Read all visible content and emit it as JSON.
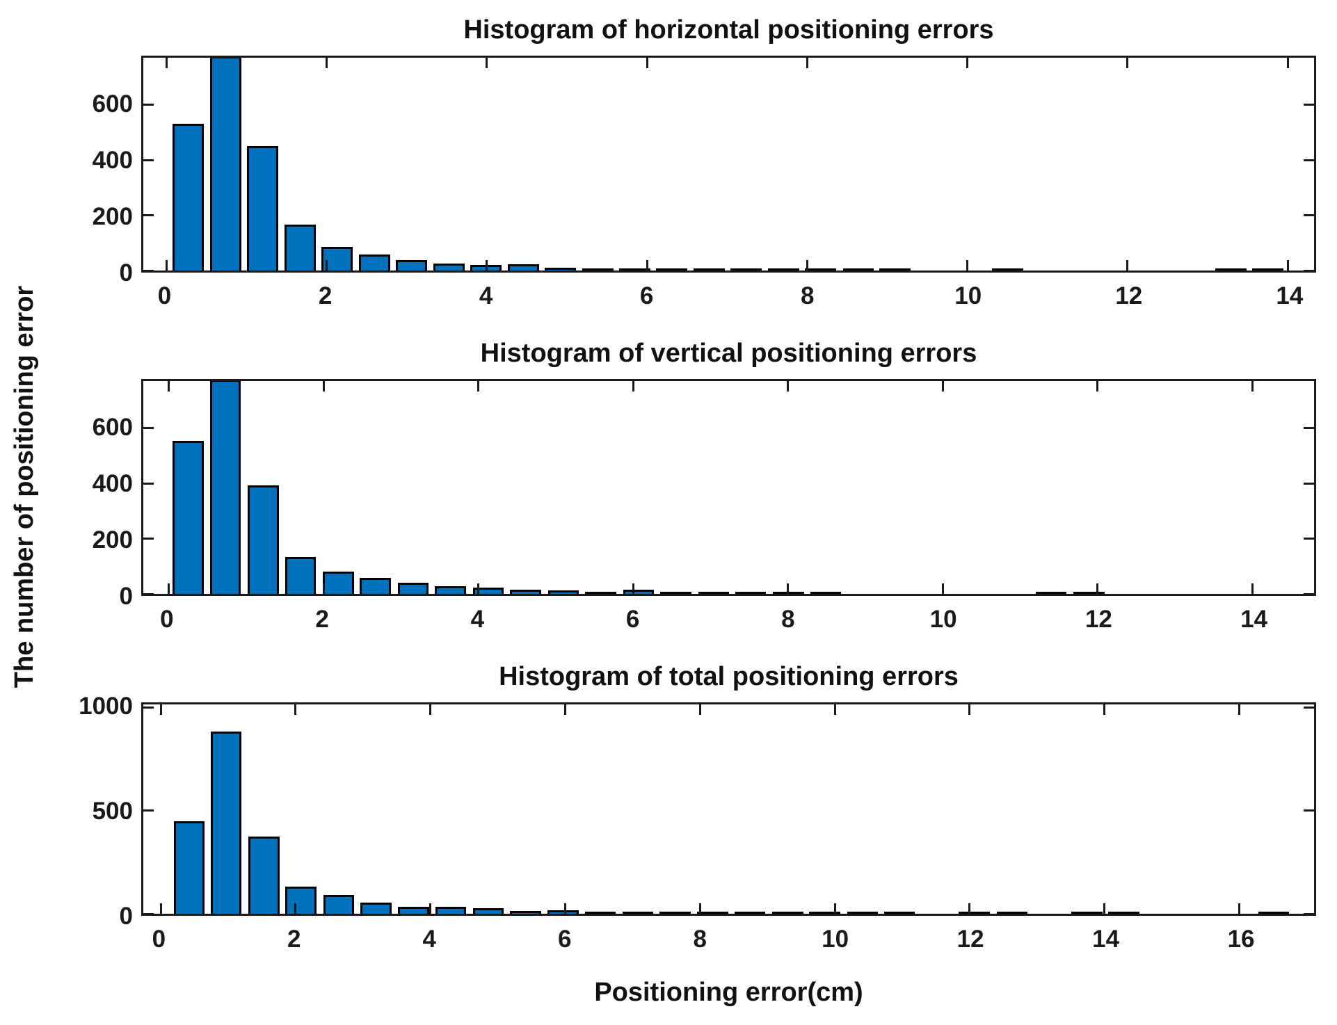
{
  "figure": {
    "background": "#ffffff",
    "bar_fill": "#0072BD",
    "bar_edge": "#000000",
    "axis_color": "#1a1a1a"
  },
  "xlabel": "Positioning error(cm)",
  "ylabel": "The number of positioning error",
  "chart_data": [
    {
      "type": "bar",
      "title": "Histogram of horizontal positioning errors",
      "xlim": [
        -0.29,
        14.33
      ],
      "ylim": [
        0,
        770
      ],
      "xticks": [
        0,
        2,
        4,
        6,
        8,
        10,
        12,
        14
      ],
      "yticks": [
        0,
        200,
        400,
        600
      ],
      "bar_width": 0.39,
      "grid": false,
      "centers": [
        0.27,
        0.74,
        1.2,
        1.67,
        2.13,
        2.6,
        3.06,
        3.53,
        3.99,
        4.46,
        4.92,
        5.39,
        5.85,
        6.31,
        6.78,
        7.24,
        7.71,
        8.17,
        8.64,
        9.1,
        9.57,
        10.03,
        10.5,
        10.96,
        11.43,
        11.89,
        12.36,
        12.82,
        13.29,
        13.75
      ],
      "counts": [
        530,
        780,
        450,
        165,
        85,
        57,
        37,
        25,
        20,
        22,
        10,
        8,
        5,
        4,
        4,
        5,
        2,
        3,
        2,
        2,
        0,
        0,
        2,
        0,
        0,
        0,
        0,
        0,
        2,
        2
      ]
    },
    {
      "type": "bar",
      "title": "Histogram of vertical positioning errors",
      "xlim": [
        -0.33,
        14.8
      ],
      "ylim": [
        0,
        770
      ],
      "xticks": [
        0,
        2,
        4,
        6,
        8,
        10,
        12,
        14
      ],
      "yticks": [
        0,
        200,
        400,
        600
      ],
      "bar_width": 0.4,
      "grid": false,
      "centers": [
        0.25,
        0.73,
        1.22,
        1.7,
        2.19,
        2.67,
        3.16,
        3.64,
        4.13,
        4.61,
        5.1,
        5.58,
        6.07,
        6.55,
        7.04,
        7.52,
        8.01,
        8.49,
        8.98,
        9.46,
        9.95,
        10.43,
        10.92,
        11.4,
        11.89
      ],
      "counts": [
        553,
        780,
        393,
        134,
        80,
        58,
        40,
        27,
        22,
        15,
        12,
        6,
        15,
        5,
        8,
        3,
        3,
        2,
        0,
        0,
        0,
        0,
        0,
        2,
        3
      ]
    },
    {
      "type": "bar",
      "title": "Histogram of total positioning errors",
      "xlim": [
        -0.26,
        17.11
      ],
      "ylim": [
        0,
        1015
      ],
      "xticks": [
        0,
        2,
        4,
        6,
        8,
        10,
        12,
        14,
        16
      ],
      "yticks": [
        0,
        500,
        1000
      ],
      "bar_width": 0.46,
      "grid": false,
      "centers": [
        0.42,
        0.97,
        1.53,
        2.08,
        2.64,
        3.19,
        3.75,
        4.3,
        4.86,
        5.41,
        5.97,
        6.52,
        7.08,
        7.63,
        8.19,
        8.74,
        9.3,
        9.85,
        10.41,
        10.96,
        11.52,
        12.07,
        12.63,
        13.18,
        13.74,
        14.29,
        14.85,
        15.4,
        15.96,
        16.51
      ],
      "counts": [
        450,
        885,
        375,
        130,
        90,
        55,
        35,
        33,
        28,
        12,
        17,
        8,
        10,
        8,
        4,
        5,
        3,
        2,
        4,
        3,
        0,
        3,
        3,
        0,
        3,
        3,
        0,
        0,
        0,
        3
      ]
    }
  ]
}
